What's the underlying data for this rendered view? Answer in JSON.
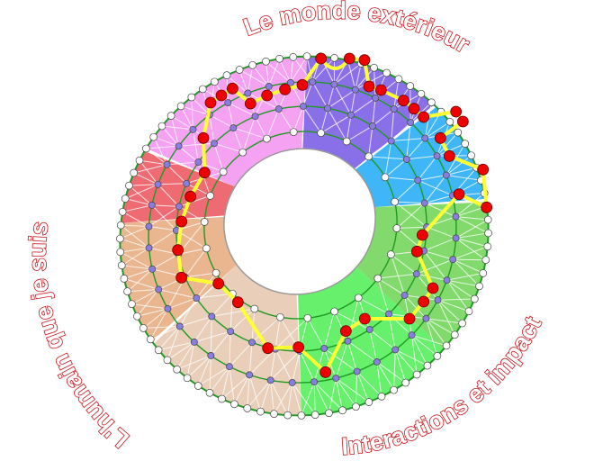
{
  "labels": {
    "top": "Le monde extérieur",
    "left": "L'humain que je suis",
    "bottom_right": "Interactions et impact"
  },
  "colors": {
    "sectors": [
      "#8a70e8",
      "#3fb6f7",
      "#82da6c",
      "#66f06c",
      "#e9cfb9",
      "#e9b68f",
      "#ef6b73",
      "#f6a2f2"
    ],
    "ring_line": "#1f9a22",
    "path": "#ffff33",
    "path_node": "#ee0000",
    "inner_node": "#8a7de0",
    "white_node": "#ffffff",
    "label_outline": "#c8161d"
  }
}
